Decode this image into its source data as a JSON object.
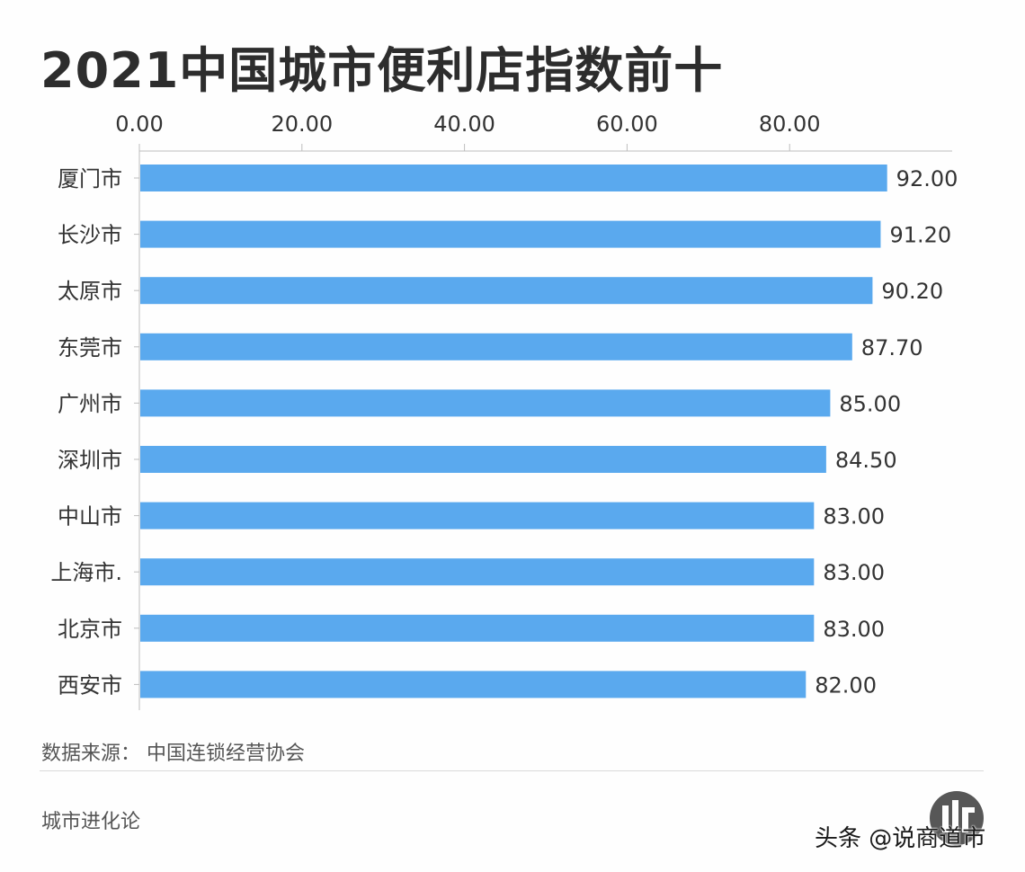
{
  "title": "2021中国城市便利店指数前十",
  "source": "数据来源： 中国连锁经营协会",
  "footer_brand": "城市进化论",
  "watermark": "头条 @说商道市",
  "colors": {
    "bar": "#5aa9ee",
    "text": "#333333",
    "grid": "#cfcfcf"
  },
  "chart_data": {
    "type": "bar",
    "orientation": "horizontal",
    "title": "2021中国城市便利店指数前十",
    "categories": [
      "厦门市",
      "长沙市",
      "太原市",
      "东莞市",
      "广州市",
      "深圳市",
      "中山市",
      "上海市.",
      "北京市",
      "西安市"
    ],
    "values": [
      92.0,
      91.2,
      90.2,
      87.7,
      85.0,
      84.5,
      83.0,
      83.0,
      83.0,
      82.0
    ],
    "value_labels": [
      "92.00",
      "91.20",
      "90.20",
      "87.70",
      "85.00",
      "84.50",
      "83.00",
      "83.00",
      "83.00",
      "82.00"
    ],
    "x_ticks": [
      0,
      20,
      40,
      60,
      80
    ],
    "x_tick_labels": [
      "0.00",
      "20.00",
      "40.00",
      "60.00",
      "80.00"
    ],
    "x_axis_position": "top",
    "xlim": [
      0,
      100
    ],
    "grid": true
  }
}
